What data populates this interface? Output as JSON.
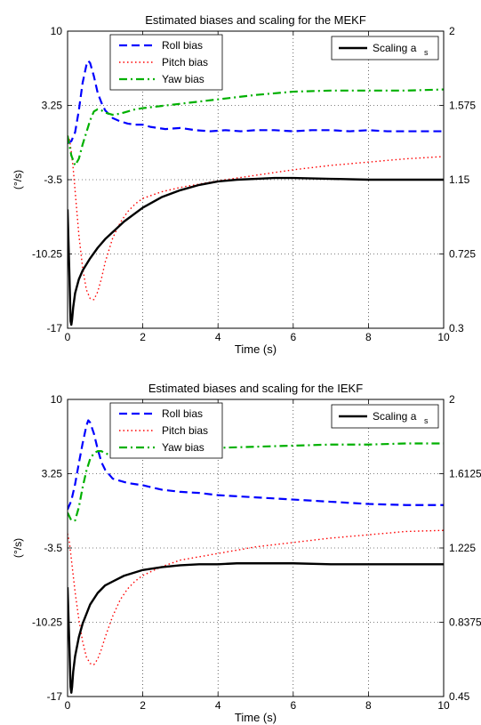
{
  "colors": {
    "roll": "#0000ff",
    "pitch": "#ff0000",
    "yaw": "#00b000",
    "scaling": "#000000",
    "grid": "#000000"
  },
  "chart_data": [
    {
      "type": "line",
      "title": "Estimated biases and scaling for the MEKF",
      "xlabel": "Time (s)",
      "ylabel": "(°/s)",
      "xlim": [
        0,
        10
      ],
      "ylim": [
        -17,
        10
      ],
      "y2lim": [
        0.3,
        2
      ],
      "xticks": [
        "0",
        "2",
        "4",
        "6",
        "8",
        "10"
      ],
      "yticks": [
        "-17",
        "-10.25",
        "-3.5",
        "3.25",
        "10"
      ],
      "y2ticks": [
        "0.3",
        "0.725",
        "1.15",
        "1.575",
        "2"
      ],
      "grid": true,
      "legend_left": {
        "position": "top-left",
        "entries": [
          "Roll bias",
          "Pitch bias",
          "Yaw bias"
        ]
      },
      "legend_right": {
        "position": "top-right",
        "label_main": "Scaling a",
        "label_sub": "s"
      },
      "series": [
        {
          "name": "Roll bias",
          "axis": "left",
          "style": "dashed",
          "color_key": "roll",
          "x": [
            0,
            0.1,
            0.2,
            0.3,
            0.4,
            0.5,
            0.55,
            0.6,
            0.7,
            0.8,
            0.9,
            1.0,
            1.2,
            1.4,
            1.6,
            1.8,
            2.0,
            2.2,
            2.6,
            3.0,
            3.4,
            3.8,
            4.2,
            4.6,
            5.0,
            5.5,
            6.0,
            6.5,
            7.0,
            7.5,
            8.0,
            8.5,
            9.0,
            9.5,
            10
          ],
          "y": [
            -0.2,
            0.0,
            0.8,
            2.8,
            5.3,
            6.9,
            7.3,
            7.1,
            5.9,
            4.4,
            3.5,
            2.8,
            2.1,
            1.8,
            1.6,
            1.5,
            1.5,
            1.3,
            1.1,
            1.2,
            1.0,
            0.9,
            1.0,
            0.9,
            1.0,
            1.0,
            0.9,
            1.0,
            1.0,
            0.9,
            1.0,
            0.9,
            0.9,
            0.9,
            0.9
          ]
        },
        {
          "name": "Pitch bias",
          "axis": "left",
          "style": "dotted",
          "color_key": "pitch",
          "x": [
            0,
            0.05,
            0.1,
            0.15,
            0.2,
            0.3,
            0.4,
            0.5,
            0.6,
            0.7,
            0.8,
            0.9,
            1.0,
            1.2,
            1.4,
            1.6,
            1.8,
            2.0,
            2.5,
            3.0,
            3.5,
            4.0,
            5.0,
            6.0,
            7.0,
            8.0,
            9.0,
            10
          ],
          "y": [
            0.5,
            0.2,
            -1.0,
            -2.5,
            -4.5,
            -8.5,
            -11.5,
            -13.5,
            -14.3,
            -14.4,
            -13.7,
            -12.5,
            -11.0,
            -8.8,
            -7.4,
            -6.4,
            -5.7,
            -5.2,
            -4.6,
            -4.2,
            -3.9,
            -3.6,
            -3.1,
            -2.6,
            -2.2,
            -1.9,
            -1.6,
            -1.4
          ]
        },
        {
          "name": "Yaw bias",
          "axis": "left",
          "style": "dashdot",
          "color_key": "yaw",
          "x": [
            0,
            0.1,
            0.2,
            0.3,
            0.4,
            0.5,
            0.6,
            0.7,
            0.8,
            0.9,
            1.0,
            1.2,
            1.4,
            1.6,
            1.8,
            2.0,
            2.5,
            3.0,
            4.0,
            5.0,
            6.0,
            7.0,
            8.0,
            9.0,
            10
          ],
          "y": [
            0.5,
            -1.3,
            -2.2,
            -1.6,
            -0.3,
            0.8,
            1.9,
            2.7,
            2.9,
            2.8,
            2.6,
            2.4,
            2.5,
            2.7,
            2.9,
            3.0,
            3.2,
            3.4,
            3.8,
            4.2,
            4.5,
            4.6,
            4.6,
            4.6,
            4.7
          ]
        },
        {
          "name": "Scaling a_s",
          "axis": "right",
          "style": "solid",
          "color_key": "scaling",
          "x": [
            0,
            0.05,
            0.08,
            0.1,
            0.12,
            0.15,
            0.2,
            0.3,
            0.4,
            0.6,
            0.8,
            1.0,
            1.5,
            2.0,
            2.5,
            3.0,
            3.5,
            4.0,
            4.5,
            5.0,
            5.5,
            6.0,
            7.0,
            8.0,
            9.0,
            10
          ],
          "y": [
            0.98,
            0.6,
            0.34,
            0.32,
            0.35,
            0.42,
            0.5,
            0.58,
            0.63,
            0.7,
            0.76,
            0.81,
            0.91,
            0.99,
            1.05,
            1.09,
            1.12,
            1.14,
            1.15,
            1.155,
            1.16,
            1.16,
            1.155,
            1.15,
            1.15,
            1.15
          ]
        }
      ]
    },
    {
      "type": "line",
      "title": "Estimated biases and scaling for the IEKF",
      "xlabel": "Time (s)",
      "ylabel": "(°/s)",
      "xlim": [
        0,
        10
      ],
      "ylim": [
        -17,
        10
      ],
      "y2lim": [
        0.45,
        2
      ],
      "xticks": [
        "0",
        "2",
        "4",
        "6",
        "8",
        "10"
      ],
      "yticks": [
        "-17",
        "-10.25",
        "-3.5",
        "3.25",
        "10"
      ],
      "y2ticks": [
        "0.45",
        "0.8375",
        "1.225",
        "1.6125",
        "2"
      ],
      "grid": true,
      "legend_left": {
        "position": "top-left",
        "entries": [
          "Roll bias",
          "Pitch bias",
          "Yaw bias"
        ]
      },
      "legend_right": {
        "position": "top-right",
        "label_main": "Scaling a",
        "label_sub": "s"
      },
      "series": [
        {
          "name": "Roll bias",
          "axis": "left",
          "style": "dashed",
          "color_key": "roll",
          "x": [
            0,
            0.1,
            0.2,
            0.3,
            0.4,
            0.5,
            0.55,
            0.6,
            0.7,
            0.8,
            0.9,
            1.0,
            1.2,
            1.4,
            1.6,
            1.8,
            2.0,
            2.5,
            3.0,
            3.5,
            4.0,
            5.0,
            6.0,
            7.0,
            8.0,
            9.0,
            10
          ],
          "y": [
            0.0,
            0.8,
            2.3,
            4.2,
            6.0,
            7.6,
            8.1,
            7.9,
            6.9,
            5.5,
            4.3,
            3.6,
            2.8,
            2.6,
            2.4,
            2.3,
            2.2,
            1.8,
            1.6,
            1.5,
            1.3,
            1.1,
            0.9,
            0.7,
            0.5,
            0.4,
            0.4
          ]
        },
        {
          "name": "Pitch bias",
          "axis": "left",
          "style": "dotted",
          "color_key": "pitch",
          "x": [
            0,
            0.05,
            0.1,
            0.15,
            0.2,
            0.3,
            0.4,
            0.5,
            0.6,
            0.7,
            0.8,
            0.9,
            1.0,
            1.2,
            1.4,
            1.6,
            1.8,
            2.0,
            2.5,
            3.0,
            3.5,
            4.0,
            5.0,
            6.0,
            7.0,
            8.0,
            9.0,
            10
          ],
          "y": [
            -2.2,
            -3.0,
            -4.5,
            -6.0,
            -7.5,
            -10.0,
            -12.0,
            -13.4,
            -14.0,
            -14.1,
            -13.6,
            -12.7,
            -11.6,
            -9.7,
            -8.2,
            -7.2,
            -6.5,
            -6.0,
            -5.2,
            -4.6,
            -4.3,
            -4.0,
            -3.4,
            -3.0,
            -2.6,
            -2.3,
            -2.0,
            -1.9
          ]
        },
        {
          "name": "Yaw bias",
          "axis": "left",
          "style": "dashdot",
          "color_key": "yaw",
          "x": [
            0,
            0.1,
            0.2,
            0.3,
            0.4,
            0.5,
            0.6,
            0.7,
            0.8,
            0.9,
            1.0,
            1.2,
            1.4,
            1.6,
            1.8,
            2.0,
            2.5,
            3.0,
            4.0,
            5.0,
            6.0,
            7.0,
            8.0,
            9.0,
            10
          ],
          "y": [
            -0.3,
            -1.0,
            -1.0,
            0.2,
            2.0,
            3.5,
            4.6,
            5.1,
            5.3,
            5.3,
            5.1,
            4.9,
            5.0,
            5.1,
            5.3,
            5.4,
            5.4,
            5.5,
            5.6,
            5.7,
            5.8,
            5.9,
            5.9,
            6.0,
            6.0
          ]
        },
        {
          "name": "Scaling a_s",
          "axis": "right",
          "style": "solid",
          "color_key": "scaling",
          "x": [
            0,
            0.05,
            0.08,
            0.1,
            0.12,
            0.15,
            0.2,
            0.3,
            0.4,
            0.6,
            0.8,
            1.0,
            1.5,
            2.0,
            2.5,
            3.0,
            3.5,
            4.0,
            4.5,
            5.0,
            6.0,
            7.0,
            8.0,
            9.0,
            10
          ],
          "y": [
            1.02,
            0.7,
            0.5,
            0.47,
            0.5,
            0.58,
            0.66,
            0.76,
            0.83,
            0.93,
            0.99,
            1.03,
            1.08,
            1.11,
            1.125,
            1.135,
            1.14,
            1.14,
            1.145,
            1.145,
            1.145,
            1.14,
            1.14,
            1.14,
            1.14
          ]
        }
      ]
    }
  ]
}
